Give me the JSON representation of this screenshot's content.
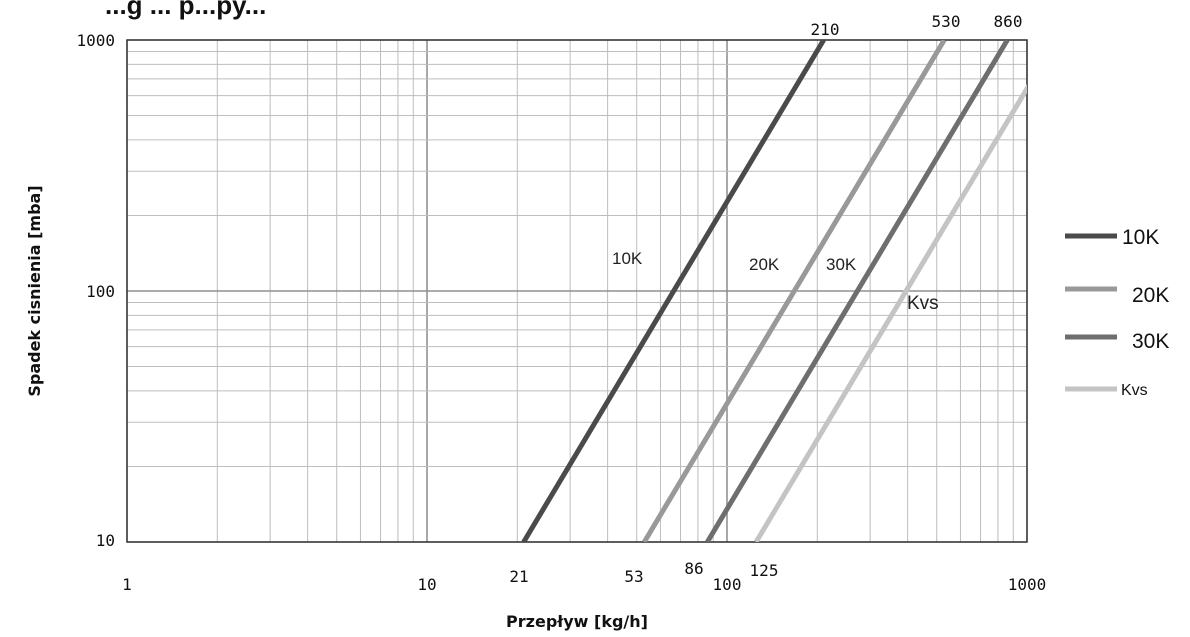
{
  "chart_data": {
    "type": "line",
    "title": "...g ... p...py...",
    "xlabel": "Przepływ [kg/h]",
    "ylabel": "Spadek cisnienia  [mba]",
    "xscale": "log",
    "yscale": "log",
    "xlim": [
      1,
      1000
    ],
    "ylim": [
      10,
      1000
    ],
    "x_ticks": [
      "1",
      "10",
      "100",
      "1000"
    ],
    "y_ticks": [
      "10",
      "100",
      "1000"
    ],
    "grid": true,
    "legend_position": "right",
    "series": [
      {
        "name": "10K",
        "color": "#4a4a4a",
        "legend_label": "10K",
        "label": "10K",
        "x": [
          21,
          210
        ],
        "y": [
          10,
          1000
        ],
        "start_label": "21",
        "end_label": "210"
      },
      {
        "name": "20K",
        "color": "#999999",
        "legend_label": "20K",
        "label": "20K",
        "x": [
          53,
          530
        ],
        "y": [
          10,
          1000
        ],
        "start_label": "53",
        "end_label": "530"
      },
      {
        "name": "30K",
        "color": "#6e6e6e",
        "legend_label": "30K",
        "label": "30K",
        "x": [
          86,
          860
        ],
        "y": [
          10,
          1000
        ],
        "start_label": "86",
        "end_label": "860"
      },
      {
        "name": "Kvs",
        "color": "#c4c4c4",
        "legend_label": "Kvs",
        "label": "Kvs",
        "x": [
          125,
          1250
        ],
        "y": [
          10,
          1000
        ],
        "start_label": "125",
        "end_label": ""
      }
    ]
  }
}
